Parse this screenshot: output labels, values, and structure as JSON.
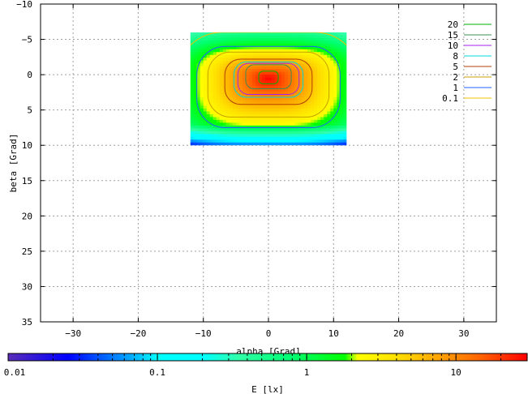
{
  "chart_data": {
    "type": "heatmap",
    "title": "",
    "xlabel": "alpha [Grad]",
    "ylabel": "beta [Grad]",
    "xlim": [
      -35,
      35
    ],
    "ylim": [
      -10,
      35
    ],
    "y_inverted": true,
    "grid": true,
    "x_ticks": [
      -30,
      -20,
      -10,
      0,
      10,
      20,
      30
    ],
    "x_tick_labels": [
      "−30",
      "−20",
      "−10",
      "0",
      "10",
      "20",
      "30"
    ],
    "y_ticks": [
      -10,
      -5,
      0,
      5,
      10,
      15,
      20,
      25,
      30,
      35
    ],
    "y_tick_labels": [
      "−10",
      "−5",
      "0",
      "5",
      "10",
      "15",
      "20",
      "25",
      "30",
      "35"
    ],
    "data_extent": {
      "alpha": [
        -12,
        12
      ],
      "beta": [
        -6,
        10
      ]
    },
    "peak": {
      "alpha": 0,
      "beta": 0.5,
      "value": 30
    },
    "legend_position": "top-right",
    "contours": [
      {
        "label": "20",
        "level": 20,
        "color": "#00b000",
        "alpha_half": 1.5,
        "beta_range": [
          -0.5,
          1.3
        ]
      },
      {
        "label": "15",
        "level": 15,
        "color": "#3c8c50",
        "alpha_half": 3.5,
        "beta_range": [
          -1.4,
          2.0
        ]
      },
      {
        "label": "10",
        "level": 10,
        "color": "#a020f0",
        "alpha_half": 4.7,
        "beta_range": [
          -1.6,
          2.8
        ]
      },
      {
        "label": "8",
        "level": 8,
        "color": "#00d8d8",
        "alpha_half": 5.3,
        "beta_range": [
          -1.8,
          3.2
        ]
      },
      {
        "label": "5",
        "level": 5,
        "color": "#b04000",
        "alpha_half": 6.7,
        "beta_range": [
          -2.2,
          4.2
        ]
      },
      {
        "label": "2",
        "level": 2,
        "color": "#c8a000",
        "alpha_half": 9.3,
        "beta_range": [
          -3.2,
          6.0
        ]
      },
      {
        "label": "1",
        "level": 1,
        "color": "#1f5fff",
        "alpha_half": 11,
        "beta_range": [
          -4.0,
          7.5
        ]
      },
      {
        "label": "0.1",
        "level": 0.1,
        "color": "#f0c000",
        "alpha_half": 14,
        "beta_range": [
          -6,
          12
        ]
      }
    ],
    "colorbar": {
      "label": "E [lx]",
      "scale": "log",
      "range": [
        0.01,
        30
      ],
      "ticks": [
        0.01,
        0.1,
        1,
        10
      ],
      "tick_labels": [
        "0.01",
        "0.1",
        "1",
        "10"
      ],
      "stops": [
        {
          "value": 0.01,
          "color": "#5a2db8"
        },
        {
          "value": 0.025,
          "color": "#0000ff"
        },
        {
          "value": 0.07,
          "color": "#00b4ff"
        },
        {
          "value": 0.1,
          "color": "#00ffff"
        },
        {
          "value": 0.2,
          "color": "#00ffff"
        },
        {
          "value": 0.35,
          "color": "#30ffa8"
        },
        {
          "value": 0.8,
          "color": "#00ff70"
        },
        {
          "value": 1.8,
          "color": "#00ff00"
        },
        {
          "value": 2.2,
          "color": "#ffff00"
        },
        {
          "value": 4,
          "color": "#ffe000"
        },
        {
          "value": 8,
          "color": "#ffa000"
        },
        {
          "value": 15,
          "color": "#ff6000"
        },
        {
          "value": 30,
          "color": "#ff0000"
        }
      ]
    }
  }
}
